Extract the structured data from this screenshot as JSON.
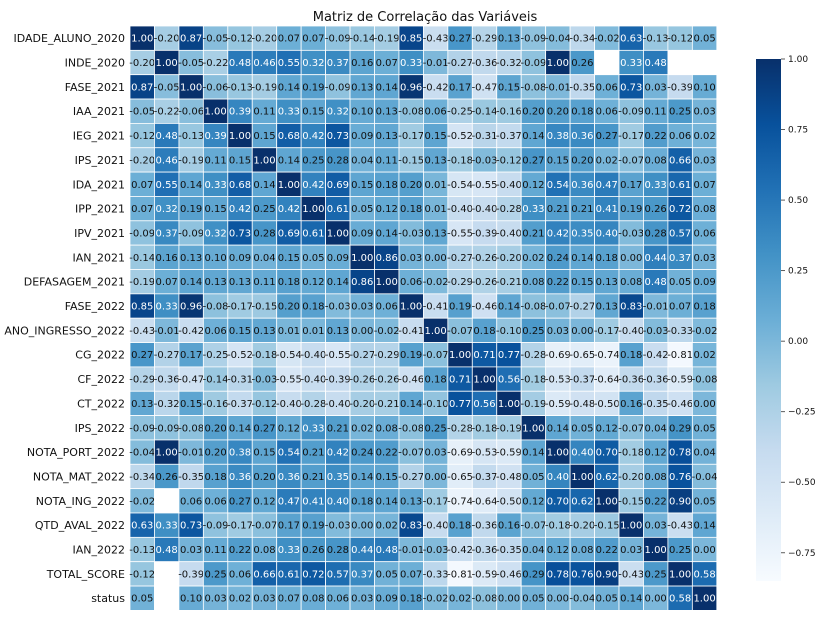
{
  "chart_data": {
    "type": "heatmap",
    "title": "Matriz de Correlação das Variáveis",
    "labels": [
      "IDADE_ALUNO_2020",
      "INDE_2020",
      "FASE_2021",
      "IAA_2021",
      "IEG_2021",
      "IPS_2021",
      "IDA_2021",
      "IPP_2021",
      "IPV_2021",
      "IAN_2021",
      "DEFASAGEM_2021",
      "FASE_2022",
      "ANO_INGRESSO_2022",
      "CG_2022",
      "CF_2022",
      "CT_2022",
      "IPS_2022",
      "NOTA_PORT_2022",
      "NOTA_MAT_2022",
      "NOTA_ING_2022",
      "QTD_AVAL_2022",
      "IAN_2022",
      "TOTAL_SCORE",
      "status"
    ],
    "matrix": [
      [
        1.0,
        -0.2,
        0.87,
        -0.05,
        -0.12,
        -0.2,
        0.07,
        0.07,
        -0.09,
        -0.14,
        -0.19,
        0.85,
        -0.43,
        0.27,
        -0.29,
        0.13,
        -0.09,
        -0.04,
        -0.34,
        -0.02,
        0.63,
        -0.13,
        -0.12,
        0.05
      ],
      [
        -0.2,
        1.0,
        -0.05,
        -0.22,
        0.48,
        0.46,
        0.55,
        0.32,
        0.37,
        0.16,
        0.07,
        0.33,
        -0.01,
        -0.27,
        -0.36,
        -0.32,
        -0.09,
        1.0,
        0.26,
        null,
        0.33,
        0.48,
        null,
        null
      ],
      [
        0.87,
        -0.05,
        1.0,
        -0.06,
        -0.13,
        -0.19,
        0.14,
        0.19,
        -0.09,
        0.13,
        0.14,
        0.96,
        -0.42,
        0.17,
        -0.47,
        0.15,
        -0.08,
        -0.01,
        -0.35,
        0.06,
        0.73,
        0.03,
        -0.39,
        0.1
      ],
      [
        -0.05,
        -0.22,
        -0.06,
        1.0,
        0.39,
        0.11,
        0.33,
        0.15,
        0.32,
        0.1,
        0.13,
        -0.08,
        0.06,
        -0.25,
        -0.14,
        -0.16,
        0.2,
        0.2,
        0.18,
        0.06,
        -0.09,
        0.11,
        0.25,
        0.03
      ],
      [
        -0.12,
        0.48,
        -0.13,
        0.39,
        1.0,
        0.15,
        0.68,
        0.42,
        0.73,
        0.09,
        0.13,
        -0.17,
        0.15,
        -0.52,
        -0.31,
        -0.37,
        0.14,
        0.38,
        0.36,
        0.27,
        -0.17,
        0.22,
        0.06,
        0.02
      ],
      [
        -0.2,
        0.46,
        -0.19,
        0.11,
        0.15,
        1.0,
        0.14,
        0.25,
        0.28,
        0.04,
        0.11,
        -0.15,
        0.13,
        -0.18,
        -0.03,
        -0.12,
        0.27,
        0.15,
        0.2,
        0.02,
        -0.07,
        0.08,
        0.66,
        0.03
      ],
      [
        0.07,
        0.55,
        0.14,
        0.33,
        0.68,
        0.14,
        1.0,
        0.42,
        0.69,
        0.15,
        0.18,
        0.2,
        0.01,
        -0.54,
        -0.55,
        -0.4,
        0.12,
        0.54,
        0.36,
        0.47,
        0.17,
        0.33,
        0.61,
        0.07
      ],
      [
        0.07,
        0.32,
        0.19,
        0.15,
        0.42,
        0.25,
        0.42,
        1.0,
        0.61,
        0.05,
        0.12,
        0.18,
        0.01,
        -0.4,
        -0.4,
        -0.28,
        0.33,
        0.21,
        0.21,
        0.41,
        0.19,
        0.26,
        0.72,
        0.08
      ],
      [
        -0.09,
        0.37,
        -0.09,
        0.32,
        0.73,
        0.28,
        0.69,
        0.61,
        1.0,
        0.09,
        0.14,
        -0.03,
        0.13,
        -0.55,
        -0.39,
        -0.4,
        0.21,
        0.42,
        0.35,
        0.4,
        -0.03,
        0.28,
        0.57,
        0.06
      ],
      [
        -0.14,
        0.16,
        0.13,
        0.1,
        0.09,
        0.04,
        0.15,
        0.05,
        0.09,
        1.0,
        0.86,
        0.03,
        0.0,
        -0.27,
        -0.26,
        -0.2,
        0.02,
        0.24,
        0.14,
        0.18,
        -0.0,
        0.44,
        0.37,
        0.03
      ],
      [
        -0.19,
        0.07,
        0.14,
        0.13,
        0.13,
        0.11,
        0.18,
        0.12,
        0.14,
        0.86,
        1.0,
        0.06,
        -0.02,
        -0.29,
        -0.26,
        -0.21,
        0.08,
        0.22,
        0.15,
        0.13,
        0.08,
        0.48,
        0.05,
        0.09
      ],
      [
        0.85,
        0.33,
        0.96,
        -0.08,
        -0.17,
        -0.15,
        0.2,
        0.18,
        -0.03,
        0.03,
        0.06,
        1.0,
        -0.41,
        0.19,
        -0.46,
        0.14,
        -0.08,
        -0.07,
        -0.27,
        0.13,
        0.83,
        -0.01,
        0.07,
        0.18
      ],
      [
        -0.43,
        -0.01,
        -0.42,
        0.06,
        0.15,
        0.13,
        0.01,
        0.01,
        0.13,
        0.0,
        -0.02,
        -0.41,
        1.0,
        -0.07,
        0.18,
        -0.1,
        0.25,
        0.03,
        0.0,
        -0.17,
        -0.4,
        -0.03,
        -0.33,
        -0.02
      ],
      [
        0.27,
        -0.27,
        0.17,
        -0.25,
        -0.52,
        -0.18,
        -0.54,
        -0.4,
        -0.55,
        -0.27,
        -0.29,
        0.19,
        -0.07,
        1.0,
        0.71,
        0.77,
        -0.28,
        -0.69,
        -0.65,
        -0.74,
        0.18,
        -0.42,
        -0.81,
        0.02
      ],
      [
        -0.29,
        -0.36,
        -0.47,
        -0.14,
        -0.31,
        -0.03,
        -0.55,
        -0.4,
        -0.39,
        -0.26,
        -0.26,
        -0.46,
        0.18,
        0.71,
        1.0,
        0.56,
        -0.18,
        -0.53,
        -0.37,
        -0.64,
        -0.36,
        -0.36,
        -0.59,
        -0.08
      ],
      [
        0.13,
        -0.32,
        0.15,
        -0.16,
        -0.37,
        -0.12,
        -0.4,
        -0.28,
        -0.4,
        -0.2,
        -0.21,
        0.14,
        -0.1,
        0.77,
        0.56,
        1.0,
        -0.19,
        -0.59,
        -0.48,
        -0.5,
        0.16,
        -0.35,
        -0.46,
        0.0
      ],
      [
        -0.09,
        -0.09,
        -0.08,
        0.2,
        0.14,
        0.27,
        0.12,
        0.33,
        0.21,
        0.02,
        0.08,
        -0.08,
        0.25,
        -0.28,
        -0.18,
        -0.19,
        1.0,
        0.14,
        0.05,
        0.12,
        -0.07,
        0.04,
        0.29,
        0.05
      ],
      [
        -0.04,
        1.0,
        -0.01,
        0.2,
        0.38,
        0.15,
        0.54,
        0.21,
        0.42,
        0.24,
        0.22,
        -0.07,
        0.03,
        -0.69,
        -0.53,
        -0.59,
        0.14,
        1.0,
        0.4,
        0.7,
        -0.18,
        0.12,
        0.78,
        0.04
      ],
      [
        -0.34,
        0.26,
        -0.35,
        0.18,
        0.36,
        0.2,
        0.36,
        0.21,
        0.35,
        0.14,
        0.15,
        -0.27,
        0.0,
        -0.65,
        -0.37,
        -0.48,
        0.05,
        0.4,
        1.0,
        0.62,
        -0.2,
        0.08,
        0.76,
        -0.04
      ],
      [
        -0.02,
        null,
        0.06,
        0.06,
        0.27,
        0.12,
        0.47,
        0.41,
        0.4,
        0.18,
        0.14,
        0.13,
        -0.17,
        -0.74,
        -0.64,
        -0.5,
        0.12,
        0.7,
        0.62,
        1.0,
        -0.15,
        0.22,
        0.9,
        0.05
      ],
      [
        0.63,
        0.33,
        0.73,
        -0.09,
        -0.17,
        -0.07,
        0.17,
        0.19,
        -0.03,
        -0.0,
        0.02,
        0.83,
        -0.4,
        0.18,
        -0.36,
        0.16,
        -0.07,
        -0.18,
        -0.2,
        -0.15,
        1.0,
        0.03,
        -0.43,
        0.14
      ],
      [
        -0.13,
        0.48,
        0.03,
        0.11,
        0.22,
        0.08,
        0.33,
        0.26,
        0.28,
        0.44,
        0.48,
        -0.01,
        -0.03,
        -0.42,
        -0.36,
        -0.35,
        0.04,
        0.12,
        0.08,
        0.22,
        0.03,
        1.0,
        0.25,
        0.0
      ],
      [
        -0.12,
        null,
        -0.39,
        0.25,
        0.06,
        0.66,
        0.61,
        0.72,
        0.57,
        0.37,
        0.05,
        0.07,
        -0.33,
        -0.81,
        -0.59,
        -0.46,
        0.29,
        0.78,
        0.76,
        0.9,
        -0.43,
        0.25,
        1.0,
        0.58
      ],
      [
        0.05,
        null,
        0.1,
        0.03,
        0.02,
        0.03,
        0.07,
        0.08,
        0.06,
        0.03,
        0.09,
        0.18,
        -0.02,
        0.02,
        -0.08,
        -0.0,
        0.05,
        0.0,
        -0.04,
        0.05,
        0.14,
        0.0,
        0.58,
        1.0
      ]
    ],
    "colorbar": {
      "min": -0.85,
      "max": 1.0,
      "ticks": [
        "1.00",
        "0.75",
        "0.50",
        "0.25",
        "0.00",
        "−0.25",
        "−0.50",
        "−0.75"
      ],
      "tick_values": [
        1.0,
        0.75,
        0.5,
        0.25,
        0.0,
        -0.25,
        -0.5,
        -0.75
      ]
    },
    "colormap": [
      "#f7fbff",
      "#deebf7",
      "#c6dbef",
      "#9ecae1",
      "#6baed6",
      "#4292c6",
      "#2171b5",
      "#08519c",
      "#08306b"
    ],
    "grid": true,
    "cell_border_color": "#ffffff",
    "legend_position": "right"
  }
}
